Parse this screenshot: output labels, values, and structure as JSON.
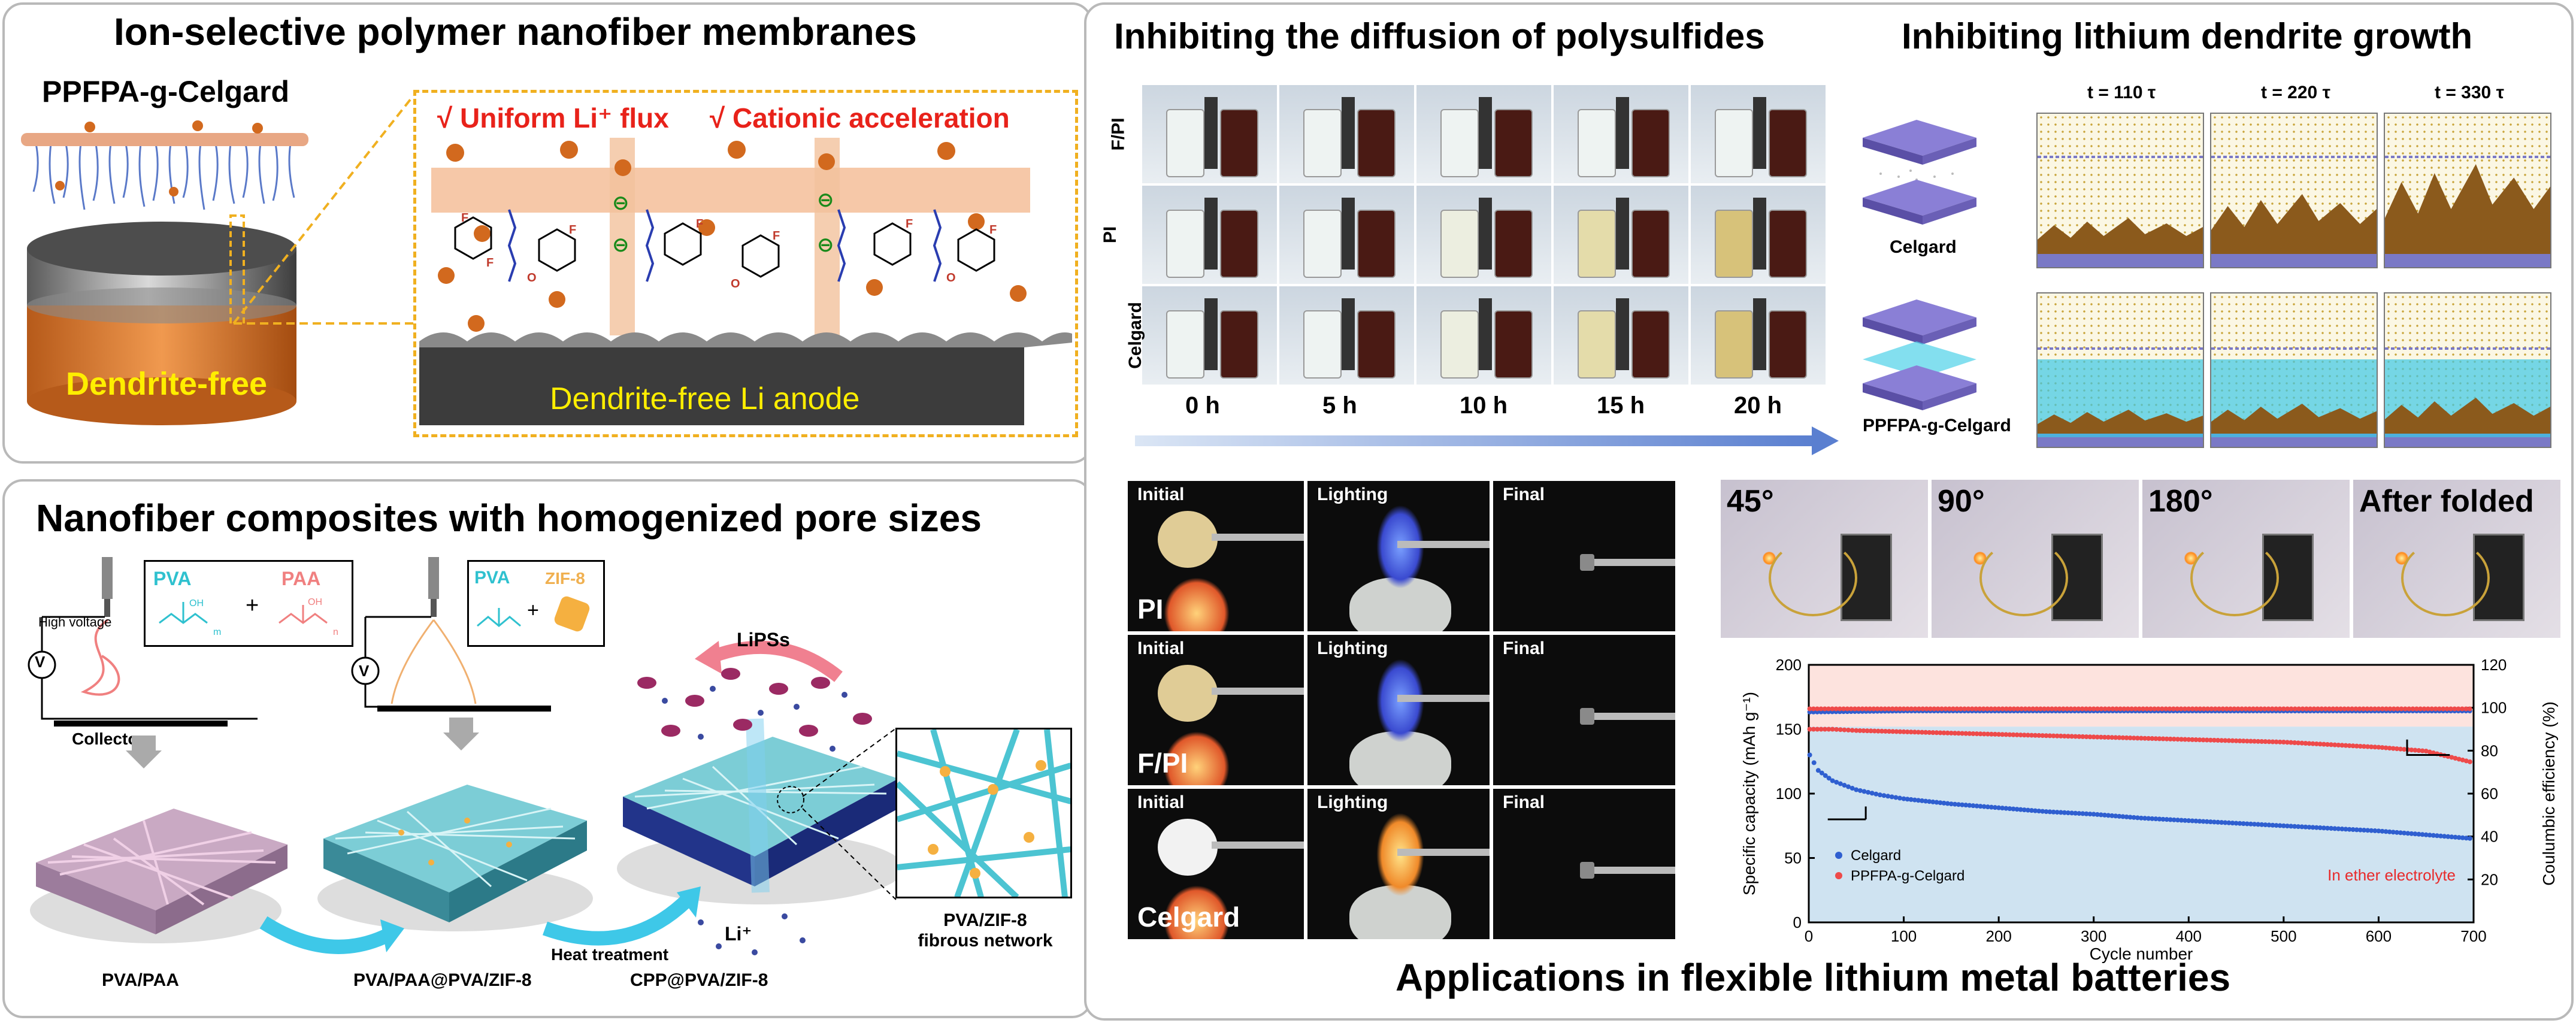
{
  "panel_a": {
    "title": "Ion-selective polymer nanofiber membranes",
    "membrane_label": "PPFPA-g-Celgard",
    "anode_label": "Dendrite-free",
    "zoom_bullet_1": "√ Uniform Li⁺ flux",
    "zoom_bullet_2": "√ Cationic acceleration",
    "zoom_anode_label": "Dendrite-free Li anode",
    "f_label": "F",
    "o_label": "O",
    "anion_symbol": "⊖"
  },
  "panel_b": {
    "title": "Nanofiber composites with homogenized pore sizes",
    "high_voltage": "High voltage",
    "voltmeter": "V",
    "collector": "Collector",
    "pva_1": "PVA",
    "paa": "PAA",
    "plus": "+",
    "pva_2": "PVA",
    "zif8": "ZIF-8",
    "oh": "OH",
    "m_sub": "m",
    "n_sub": "n",
    "lipss": "LiPSs",
    "heat_treatment": "Heat treatment",
    "li_plus": "Li⁺",
    "label_1": "PVA/PAA",
    "label_2": "PVA/PAA@PVA/ZIF-8",
    "label_3": "CPP@PVA/ZIF-8",
    "zoom_label_line1": "PVA/ZIF-8",
    "zoom_label_line2": "fibrous network"
  },
  "panel_c": {
    "title_left": "Inhibiting the diffusion of polysulfides",
    "title_right": "Inhibiting lithium dendrite growth",
    "vial_rows": [
      "F/PI",
      "PI",
      "Celgard"
    ],
    "vial_times": [
      "0 h",
      "5 h",
      "10 h",
      "15 h",
      "20 h"
    ],
    "sim_times": [
      "t = 110 τ",
      "t = 220 τ",
      "t = 330 τ"
    ],
    "sim_rows": [
      "Celgard",
      "PPFPA-g-Celgard"
    ],
    "flame_rows": [
      "PI",
      "F/PI",
      "Celgard"
    ],
    "flame_cols": [
      "Initial",
      "Lighting",
      "Final"
    ],
    "fold_labels": [
      "45°",
      "90°",
      "180°",
      "After folded"
    ],
    "bottom_title": "Applications in flexible lithium metal batteries"
  },
  "chart_data": {
    "type": "scatter",
    "xlabel": "Cycle number",
    "ylabel": "Specific capacity (mAh g⁻¹)",
    "ylabel_right": "Coulumbic efficiency (%)",
    "xlim": [
      0,
      700
    ],
    "ylim": [
      0,
      200
    ],
    "ylim_right": [
      0,
      120
    ],
    "xticks": [
      0,
      100,
      200,
      300,
      400,
      500,
      600,
      700
    ],
    "yticks": [
      0,
      50,
      100,
      150,
      200
    ],
    "yticks_right": [
      20,
      40,
      60,
      80,
      100,
      120
    ],
    "annotation": "In ether electrolyte",
    "legend_position": "bottom-left",
    "series": [
      {
        "name": "Celgard",
        "axis": "left",
        "color": "#2f5fd0",
        "x": [
          1,
          10,
          25,
          50,
          75,
          100,
          150,
          200,
          250,
          300,
          350,
          400,
          450,
          500,
          550,
          600,
          650,
          700
        ],
        "y": [
          130,
          118,
          110,
          103,
          99,
          96,
          92,
          89,
          86,
          84,
          81,
          79,
          77,
          75,
          73,
          71,
          68,
          65
        ]
      },
      {
        "name": "PPFPA-g-Celgard",
        "axis": "left",
        "color": "#ee4a4a",
        "x": [
          1,
          25,
          50,
          100,
          150,
          200,
          250,
          300,
          350,
          400,
          450,
          500,
          550,
          600,
          650,
          700
        ],
        "y": [
          150,
          150,
          149,
          148,
          147,
          146,
          145,
          144,
          143,
          142,
          141,
          140,
          138,
          136,
          133,
          124
        ]
      },
      {
        "name": "",
        "axis": "right",
        "color": "#2f5fd0",
        "x": [
          1,
          100,
          200,
          300,
          400,
          500,
          600,
          700
        ],
        "y": [
          98,
          98.5,
          98.5,
          98.5,
          98.5,
          98.5,
          98.5,
          98.5
        ]
      },
      {
        "name": "",
        "axis": "right",
        "color": "#ee4a4a",
        "x": [
          1,
          100,
          200,
          300,
          400,
          500,
          600,
          700
        ],
        "y": [
          99.5,
          99.5,
          99.5,
          99.5,
          99.5,
          99.5,
          99.5,
          99.5
        ]
      }
    ]
  }
}
